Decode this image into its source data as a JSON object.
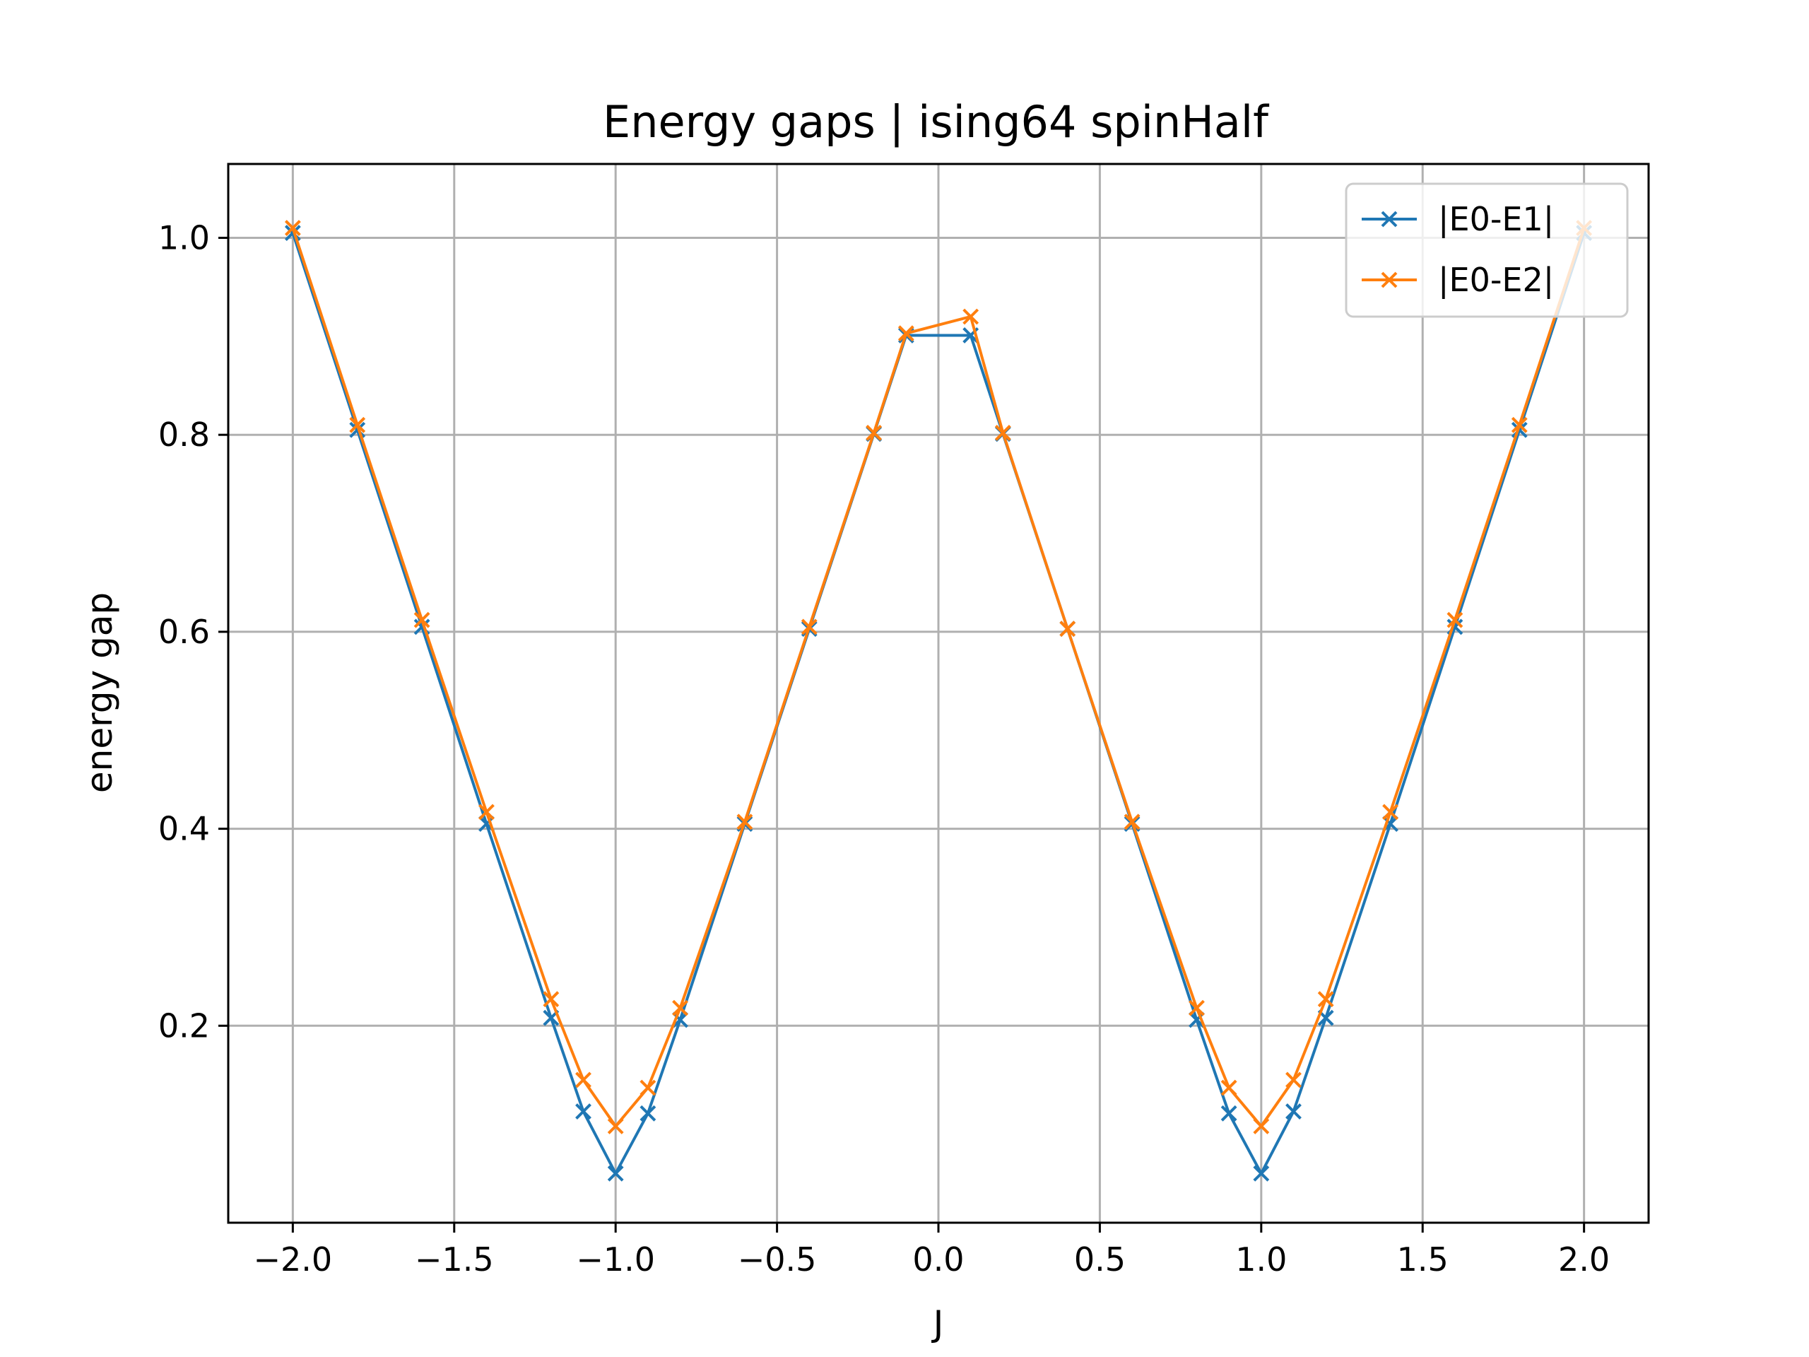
{
  "chart_data": {
    "type": "line",
    "title": "Energy gaps | ising64 spinHalf",
    "xlabel": "J",
    "ylabel": "energy gap",
    "xlim": [
      -2.2,
      2.2
    ],
    "ylim": [
      0.0,
      1.075
    ],
    "x_ticks": [
      -2.0,
      -1.5,
      -1.0,
      -0.5,
      0.0,
      0.5,
      1.0,
      1.5,
      2.0
    ],
    "x_tick_labels": [
      "−2.0",
      "−1.5",
      "−1.0",
      "−0.5",
      "0.0",
      "0.5",
      "1.0",
      "1.5",
      "2.0"
    ],
    "y_ticks": [
      0.2,
      0.4,
      0.6,
      0.8,
      1.0
    ],
    "y_tick_labels": [
      "0.2",
      "0.4",
      "0.6",
      "0.8",
      "1.0"
    ],
    "grid": true,
    "legend_position": "top-right",
    "x": [
      -2.0,
      -1.8,
      -1.6,
      -1.4,
      -1.2,
      -1.1,
      -1.0,
      -0.9,
      -0.8,
      -0.6,
      -0.4,
      -0.2,
      -0.1,
      0.1,
      0.2,
      0.4,
      0.6,
      0.8,
      0.9,
      1.0,
      1.1,
      1.2,
      1.4,
      1.6,
      1.8,
      2.0
    ],
    "series": [
      {
        "name": "|E0-E1|",
        "color": "#1f77b4",
        "values": [
          1.005,
          0.805,
          0.605,
          0.405,
          0.208,
          0.113,
          0.05,
          0.111,
          0.206,
          0.405,
          0.603,
          0.801,
          0.901,
          0.901,
          0.801,
          0.603,
          0.405,
          0.206,
          0.111,
          0.05,
          0.113,
          0.208,
          0.405,
          0.605,
          0.805,
          1.005
        ]
      },
      {
        "name": "|E0-E2|",
        "color": "#ff7f0e",
        "values": [
          1.01,
          0.81,
          0.612,
          0.417,
          0.227,
          0.145,
          0.098,
          0.137,
          0.218,
          0.407,
          0.605,
          0.802,
          0.903,
          0.92,
          0.802,
          0.603,
          0.407,
          0.218,
          0.137,
          0.098,
          0.145,
          0.227,
          0.417,
          0.612,
          0.81,
          1.01
        ]
      }
    ]
  }
}
